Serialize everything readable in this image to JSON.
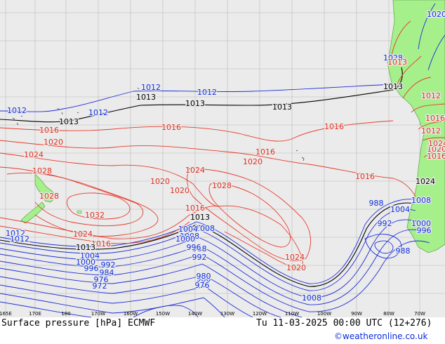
{
  "map": {
    "parameter_title": "Surface pressure [hPa] ECMWF",
    "valid_time": "Tu 11-03-2025 00:00 UTC (12+276)",
    "credit": "©weatheronline.co.uk",
    "colors": {
      "background": "#ebebeb",
      "land": "#a6f08c",
      "grid": "#b0b0b0",
      "low_isobar": "#1d2dd8",
      "high_isobar": "#e53b2b",
      "standard_isobar": "#000000",
      "label_low": "#1030e0",
      "label_high": "#e03020"
    },
    "longitude_labels": [
      "165E",
      "170E",
      "180",
      "170W",
      "160W",
      "150W",
      "140W",
      "130W",
      "120W",
      "110W",
      "100W",
      "90W",
      "80W",
      "70W"
    ],
    "isobar_labels": [
      "1012",
      "1013",
      "1012",
      "1012",
      "1013",
      "1013",
      "1012",
      "1013",
      "1013",
      "1016",
      "1016",
      "1020",
      "1024",
      "1028",
      "1028",
      "1032",
      "1024",
      "1020",
      "1020",
      "1016",
      "1024",
      "1028",
      "1016",
      "1020",
      "1016",
      "1024",
      "1020",
      "1016",
      "1012",
      "1016",
      "1012",
      "1013",
      "1013",
      "1008",
      "1004",
      "1000",
      "996",
      "992",
      "988",
      "984",
      "980",
      "976",
      "972",
      "1008",
      "1004",
      "1000",
      "996",
      "992",
      "988",
      "980",
      "976",
      "1008",
      "1004",
      "1000",
      "996",
      "992",
      "988",
      "1008",
      "1012",
      "1016",
      "1020",
      "1024",
      "1028",
      "1013",
      "1012",
      "1016",
      "1020",
      "1024",
      "1012",
      "1016"
    ]
  }
}
